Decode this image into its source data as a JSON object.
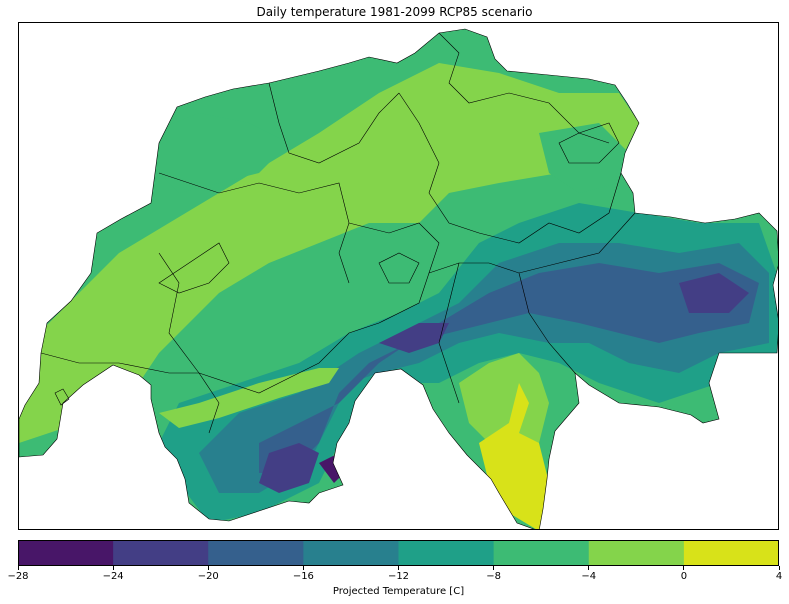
{
  "title": "Daily temperature 1981-2099 RCP85 scenario",
  "colorbar": {
    "label": "Projected Temperature [C]",
    "ticks": [
      "−28",
      "−24",
      "−20",
      "−16",
      "−12",
      "−8",
      "−4",
      "0",
      "4"
    ],
    "tick_values": [
      -28,
      -24,
      -20,
      -16,
      -12,
      -8,
      -4,
      0,
      4
    ],
    "colors": [
      "#481668",
      "#433e85",
      "#35608d",
      "#28808e",
      "#1fa088",
      "#3dbb74",
      "#84d44b",
      "#d8e219"
    ]
  },
  "map": {
    "region": "Switzerland",
    "contour_levels_c": [
      -28,
      -24,
      -20,
      -16,
      -12,
      -8,
      -4,
      0,
      4
    ],
    "boundary_color": "#000000"
  }
}
